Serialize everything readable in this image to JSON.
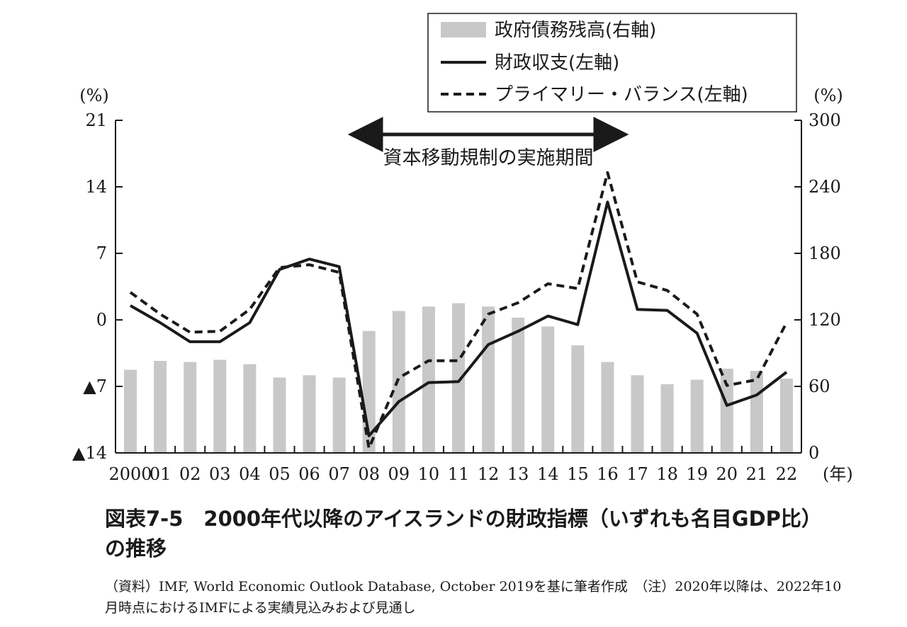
{
  "chart_data": {
    "type": "bar+line",
    "categories": [
      "2000",
      "01",
      "02",
      "03",
      "04",
      "05",
      "06",
      "07",
      "08",
      "09",
      "10",
      "11",
      "12",
      "13",
      "14",
      "15",
      "16",
      "17",
      "18",
      "19",
      "20",
      "21",
      "22"
    ],
    "x_unit": "(年)",
    "left_axis": {
      "unit": "(%)",
      "ylim": [
        -14,
        21
      ],
      "ticks": [
        21,
        14,
        7,
        0,
        -7,
        -14
      ],
      "tick_labels": [
        "21",
        "14",
        "7",
        "0",
        "▲7",
        "▲14"
      ]
    },
    "right_axis": {
      "unit": "(%)",
      "ylim": [
        0,
        300
      ],
      "ticks": [
        300,
        240,
        180,
        120,
        60,
        0
      ],
      "tick_labels": [
        "300",
        "240",
        "180",
        "120",
        "60",
        "0"
      ]
    },
    "series": [
      {
        "name": "政府債務残高(右軸)",
        "type": "bar",
        "axis": "right",
        "color": "#c8c8c8",
        "values": [
          75,
          83,
          82,
          84,
          80,
          68,
          70,
          68,
          110,
          128,
          132,
          135,
          132,
          122,
          114,
          97,
          82,
          70,
          62,
          66,
          76,
          74,
          67
        ]
      },
      {
        "name": "財政収支(左軸)",
        "type": "line",
        "axis": "left",
        "style": "solid",
        "color": "#1a1a1a",
        "values": [
          1.5,
          -0.3,
          -2.3,
          -2.3,
          -0.3,
          5.3,
          6.4,
          5.6,
          -12.2,
          -8.6,
          -6.6,
          -6.5,
          -2.6,
          -1.2,
          0.4,
          -0.5,
          12.4,
          1.1,
          1.0,
          -1.4,
          -9.0,
          -7.9,
          -5.5
        ]
      },
      {
        "name": "プライマリー・バランス(左軸)",
        "type": "line",
        "axis": "left",
        "style": "dashed",
        "color": "#1a1a1a",
        "values": [
          2.9,
          0.6,
          -1.3,
          -1.2,
          1.1,
          5.5,
          5.8,
          5.0,
          -13.5,
          -6.1,
          -4.3,
          -4.3,
          0.6,
          1.8,
          3.8,
          3.3,
          15.5,
          4.0,
          3.1,
          0.6,
          -6.9,
          -6.3,
          -0.3
        ]
      }
    ],
    "annotation": {
      "text": "資本移動規制の実施期間",
      "from": "08",
      "to": "16"
    },
    "legend_position": "top-right",
    "grid": false
  },
  "caption": {
    "title": "図表7-5　2000年代以降のアイスランドの財政指標（いずれも名目GDP比）の推移",
    "note": "（資料）IMF, World Economic Outlook Database, October 2019を基に筆者作成　（注）2020年以降は、2022年10月時点におけるIMFによる実績見込みおよび見通し"
  }
}
